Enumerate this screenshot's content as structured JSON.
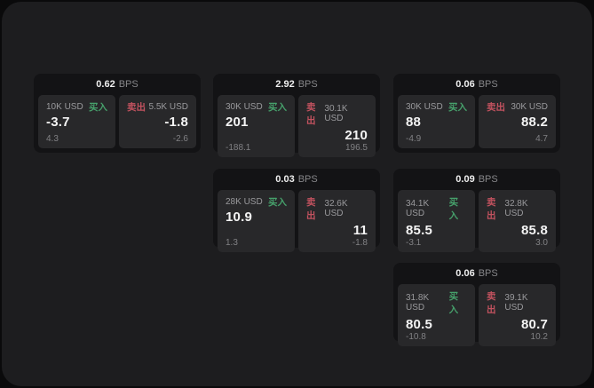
{
  "labels": {
    "buy": "买入",
    "sell": "卖出",
    "bps": "BPS"
  },
  "colors": {
    "buy_green": "#46a06b",
    "sell_red": "#c2525f",
    "panel_bg": "#1d1d1f",
    "card_bg": "#131315",
    "tile_bg": "#28282a"
  },
  "cards": [
    {
      "bps": "0.62",
      "buy": {
        "size": "10K USD",
        "value": "-3.7",
        "change": "4.3"
      },
      "sell": {
        "size": "5.5K USD",
        "value": "-1.8",
        "change": "-2.6"
      }
    },
    {
      "bps": "2.92",
      "buy": {
        "size": "30K USD",
        "value": "201",
        "change": "-188.1"
      },
      "sell": {
        "size": "30.1K USD",
        "value": "210",
        "change": "196.5"
      }
    },
    {
      "bps": "0.06",
      "buy": {
        "size": "30K USD",
        "value": "88",
        "change": "-4.9"
      },
      "sell": {
        "size": "30K USD",
        "value": "88.2",
        "change": "4.7"
      }
    },
    {
      "bps": "0.03",
      "buy": {
        "size": "28K USD",
        "value": "10.9",
        "change": "1.3"
      },
      "sell": {
        "size": "32.6K USD",
        "value": "11",
        "change": "-1.8"
      }
    },
    {
      "bps": "0.09",
      "buy": {
        "size": "34.1K USD",
        "value": "85.5",
        "change": "-3.1"
      },
      "sell": {
        "size": "32.8K USD",
        "value": "85.8",
        "change": "3.0"
      }
    },
    {
      "bps": "0.06",
      "buy": {
        "size": "31.8K USD",
        "value": "80.5",
        "change": "-10.8"
      },
      "sell": {
        "size": "39.1K USD",
        "value": "80.7",
        "change": "10.2"
      }
    }
  ]
}
